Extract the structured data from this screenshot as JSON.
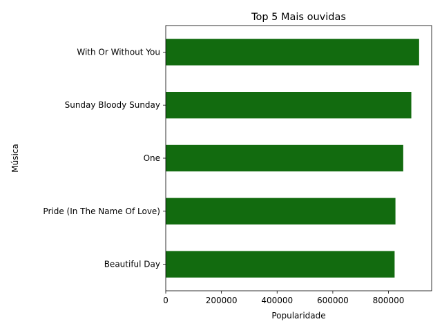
{
  "chart_data": {
    "type": "bar",
    "orientation": "horizontal",
    "title": "Top 5 Mais ouvidas",
    "xlabel": "Popularidade",
    "ylabel": "Música",
    "categories": [
      "With Or Without You",
      "Sunday Bloody Sunday",
      "One",
      "Pride (In The Name Of Love)",
      "Beautiful Day"
    ],
    "values": [
      910000,
      882000,
      853000,
      825000,
      822000
    ],
    "xlim": [
      0,
      955000
    ],
    "xticks": [
      0,
      200000,
      400000,
      600000,
      800000
    ],
    "xtick_labels": [
      "0",
      "200000",
      "400000",
      "600000",
      "800000"
    ],
    "bar_color": "#126b0f",
    "grid": false,
    "legend": "none"
  }
}
